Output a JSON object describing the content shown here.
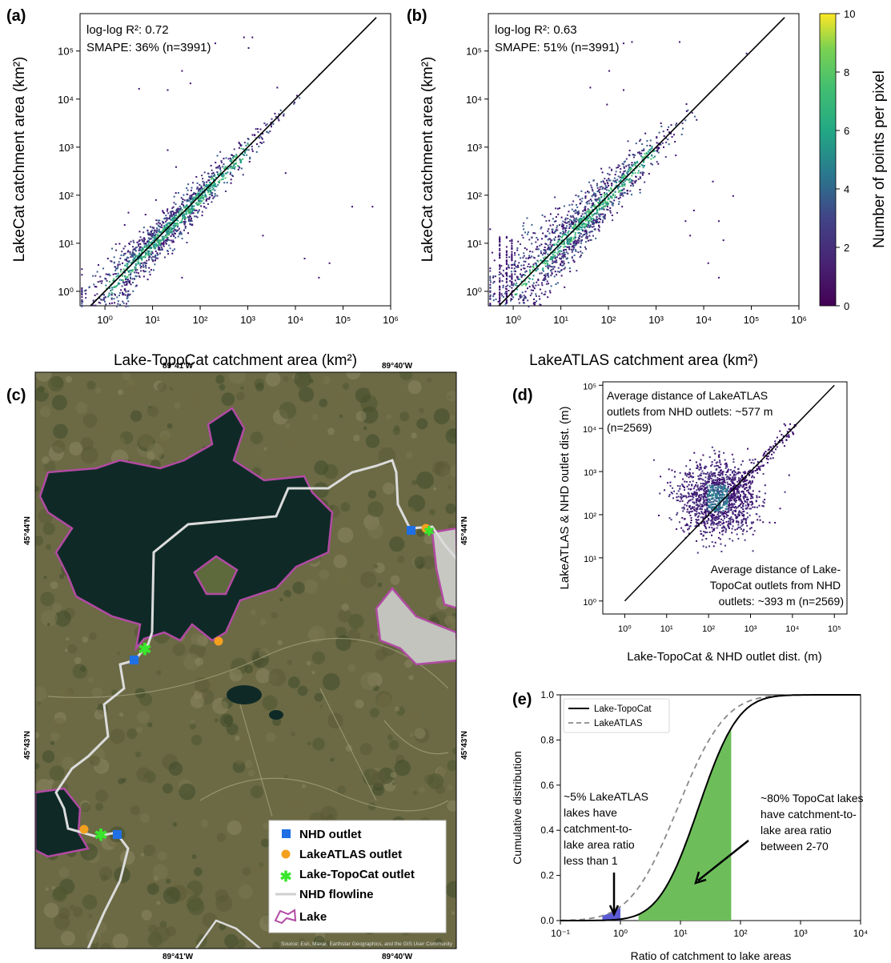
{
  "chart_data": [
    {
      "panel": "(a)",
      "type": "scatter",
      "scale": "log-log",
      "xlabel": "Lake-TopoCat catchment area (km²)",
      "ylabel": "LakeCat catchment area (km²)",
      "xlim": [
        0.3,
        1000000
      ],
      "ylim": [
        0.5,
        600000
      ],
      "x_ticks": [
        "10⁰",
        "10¹",
        "10²",
        "10³",
        "10⁴",
        "10⁵",
        "10⁶"
      ],
      "y_ticks": [
        "10⁰",
        "10¹",
        "10²",
        "10³",
        "10⁴",
        "10⁵"
      ],
      "annotations": [
        "log-log R²: 0.72",
        "SMAPE: 36% (n=3991)"
      ],
      "one_to_one_line": [
        [
          0.5,
          0.5
        ],
        [
          500000,
          500000
        ]
      ],
      "density_colored": true,
      "outliers": [
        [
          2.5,
          25
        ],
        [
          3,
          45
        ],
        [
          9,
          18
        ],
        [
          5,
          17000
        ],
        [
          20,
          16000
        ],
        [
          40,
          40000
        ],
        [
          60,
          22000
        ],
        [
          200,
          150000
        ],
        [
          800,
          200000
        ],
        [
          1000,
          120000
        ],
        [
          1200,
          200000
        ],
        [
          4000,
          18000
        ],
        [
          80,
          250
        ],
        [
          300,
          600
        ],
        [
          20,
          900
        ],
        [
          40,
          2
        ],
        [
          2000,
          15
        ],
        [
          15000,
          5
        ],
        [
          50000,
          4
        ],
        [
          150000,
          60
        ],
        [
          30000,
          2
        ],
        [
          6000,
          300
        ],
        [
          400000,
          60
        ],
        [
          30,
          400
        ],
        [
          1500,
          1200
        ]
      ]
    },
    {
      "panel": "(b)",
      "type": "scatter",
      "scale": "log-log",
      "xlabel": "LakeATLAS catchment area (km²)",
      "ylabel": "LakeCat catchment area (km²)",
      "xlim": [
        0.3,
        1000000
      ],
      "ylim": [
        0.5,
        600000
      ],
      "x_ticks": [
        "10⁰",
        "10¹",
        "10²",
        "10³",
        "10⁴",
        "10⁵",
        "10⁶"
      ],
      "y_ticks": [
        "10⁰",
        "10¹",
        "10²",
        "10³",
        "10⁴",
        "10⁵"
      ],
      "annotations": [
        "log-log R²: 0.63",
        "SMAPE: 51% (n=3991)"
      ],
      "one_to_one_line": [
        [
          0.5,
          0.5
        ],
        [
          500000,
          500000
        ]
      ],
      "density_colored": true,
      "outliers": [
        [
          40,
          18000
        ],
        [
          90,
          8000
        ],
        [
          100,
          40000
        ],
        [
          200,
          150000
        ],
        [
          300,
          160000
        ],
        [
          200,
          16000
        ],
        [
          3000,
          160000
        ],
        [
          1000,
          1000
        ],
        [
          400,
          800
        ],
        [
          2000,
          3000
        ],
        [
          5000,
          15
        ],
        [
          4000,
          30
        ],
        [
          20000,
          30
        ],
        [
          12000,
          4
        ],
        [
          20000,
          2
        ],
        [
          25000,
          12
        ],
        [
          6000,
          50
        ],
        [
          15000,
          200
        ],
        [
          40000,
          100
        ],
        [
          2500,
          700
        ]
      ]
    },
    {
      "panel": "(d)",
      "type": "scatter",
      "scale": "log-log",
      "xlabel": "Lake-TopoCat & NHD outlet dist. (m)",
      "ylabel": "LakeATLAS & NHD outlet dist. (m)",
      "xlim": [
        0.3,
        200000
      ],
      "ylim": [
        0.5,
        120000
      ],
      "x_ticks": [
        "10⁰",
        "10¹",
        "10²",
        "10³",
        "10⁴",
        "10⁵"
      ],
      "y_ticks": [
        "10⁰",
        "10¹",
        "10²",
        "10³",
        "10⁴",
        "10⁵"
      ],
      "annotations": [
        "Average distance of LakeATLAS outlets from NHD outlets: ~577 m (n=2569)",
        "Average distance of Lake-TopoCat outlets from NHD outlets: ~393 m (n=2569)"
      ],
      "one_to_one_line": [
        [
          1,
          1
        ],
        [
          100000,
          100000
        ]
      ]
    },
    {
      "panel": "(e)",
      "type": "line",
      "scale": "semilog-x",
      "xlabel": "Ratio of catchment to lake areas",
      "ylabel": "Cumulative distribution",
      "xlim": [
        0.1,
        10000
      ],
      "ylim": [
        0,
        1.0
      ],
      "x_ticks": [
        "10⁻¹",
        "10⁰",
        "10¹",
        "10²",
        "10³",
        "10⁴"
      ],
      "y_ticks": [
        "0.0",
        "0.2",
        "0.4",
        "0.6",
        "0.8",
        "1.0"
      ],
      "legend_position": "top-left",
      "series": [
        {
          "name": "Lake-TopoCat",
          "style": "solid",
          "color": "#000000",
          "median_ratio": 20,
          "log_spread": 0.52
        },
        {
          "name": "LakeATLAS",
          "style": "dashed",
          "color": "#888888",
          "median_ratio": 9,
          "log_spread": 0.62
        }
      ],
      "shaded_regions": [
        {
          "series": "Lake-TopoCat",
          "from": 2,
          "to": 70,
          "color": "#6dbe5a"
        },
        {
          "series": "LakeATLAS",
          "from": 0.5,
          "to": 1,
          "color": "#5b5bd6"
        }
      ],
      "annotations": [
        "~5% LakeATLAS lakes have catchment-to-lake area ratio less than 1",
        "~80% TopoCat lakes have catchment-to-lake area ratio between 2-70"
      ]
    }
  ],
  "colorbar": {
    "label": "Number of points per pixel",
    "min": 0,
    "max": 10,
    "ticks": [
      "0",
      "2",
      "4",
      "6",
      "8",
      "10"
    ],
    "colormap": "viridis"
  },
  "panel_labels": [
    "(a)",
    "(b)",
    "(c)",
    "(d)",
    "(e)"
  ],
  "map": {
    "coordinate_labels": {
      "top_left": "89°41'W",
      "top_right": "89°40'W",
      "bottom_left": "89°41'W",
      "bottom_right": "89°40'W",
      "left_upper": "45°44'N",
      "left_lower": "45°43'N",
      "right_upper": "45°44'N",
      "right_lower": "45°43'N"
    },
    "attribution": "Source: Esri, Maxar, Earthstar Geographics, and the GIS User Community",
    "legend": [
      {
        "label": "NHD outlet",
        "symbol": "square",
        "color": "#1f6fe5"
      },
      {
        "label": "LakeATLAS outlet",
        "symbol": "circle",
        "color": "#f4a01f"
      },
      {
        "label": "Lake-TopoCat outlet",
        "symbol": "asterisk",
        "color": "#39e62b"
      },
      {
        "label": "NHD flowline",
        "symbol": "line",
        "color": "#d9d9d9"
      },
      {
        "label": "Lake",
        "symbol": "polygon",
        "color": "#b24aa3"
      }
    ]
  },
  "colors": {
    "lake_fill": "#0f2a26",
    "lake_outline": "#b24aa3",
    "terrain": "#6b6a45",
    "ones_line": "#000000",
    "scatter_base": "#3b0f6f"
  }
}
